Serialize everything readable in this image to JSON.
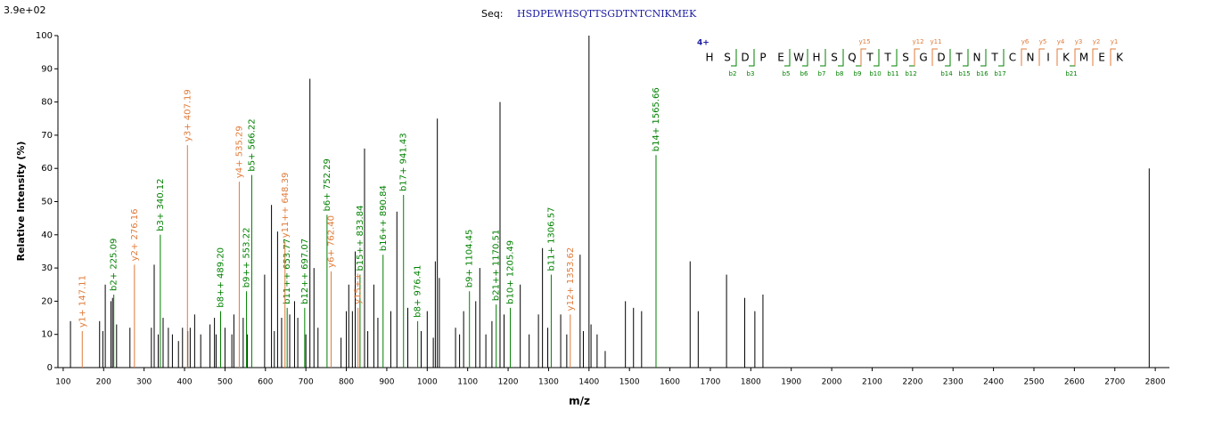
{
  "chart_data": {
    "type": "spectrum",
    "scale_label": "3.9e+02",
    "title": "Seq:",
    "sequence": "HSDPEWHSQTTSGDTNTCNIKMEK",
    "charge": "4+",
    "residues": [
      "H",
      "S",
      "D",
      "P",
      "E",
      "W",
      "H",
      "S",
      "Q",
      "T",
      "T",
      "S",
      "G",
      "D",
      "T",
      "N",
      "T",
      "C",
      "N",
      "I",
      "K",
      "M",
      "E",
      "K"
    ],
    "b_markers": [
      "b2",
      "b3",
      "b5",
      "b6",
      "b7",
      "b8",
      "b9",
      "b10",
      "b11",
      "b12",
      "b14",
      "b15",
      "b16",
      "b17",
      "b21"
    ],
    "y_markers": [
      "y15",
      "y12",
      "y11",
      "y6",
      "y5",
      "y4",
      "y3",
      "y2",
      "y1"
    ],
    "x_label": "m/z",
    "y_label": "Relative   Intensity (%)",
    "xlim": [
      87,
      2835
    ],
    "ylim": [
      0,
      100
    ],
    "xticks": [
      100,
      200,
      300,
      400,
      500,
      600,
      700,
      800,
      900,
      1000,
      1100,
      1200,
      1300,
      1400,
      1500,
      1600,
      1700,
      1800,
      1900,
      2000,
      2100,
      2200,
      2300,
      2400,
      2500,
      2600,
      2700,
      2800
    ],
    "yticks": [
      0,
      10,
      20,
      30,
      40,
      50,
      60,
      70,
      80,
      90,
      100
    ],
    "peaks": {
      "color": "#000000",
      "x": [
        87,
        118,
        190,
        198,
        204,
        218,
        222,
        232,
        265,
        318,
        325,
        335,
        347,
        360,
        370,
        385,
        395,
        408,
        414,
        425,
        440,
        463,
        474,
        478,
        500,
        517,
        522,
        545,
        555,
        598,
        615,
        622,
        630,
        640,
        660,
        672,
        680,
        700,
        710,
        720,
        730,
        787,
        800,
        806,
        815,
        822,
        845,
        853,
        868,
        878,
        910,
        925,
        952,
        985,
        1000,
        1015,
        1020,
        1025,
        1030,
        1070,
        1080,
        1090,
        1120,
        1130,
        1145,
        1160,
        1180,
        1190,
        1230,
        1252,
        1275,
        1285,
        1298,
        1330,
        1345,
        1378,
        1386,
        1400,
        1405,
        1420,
        1440,
        1490,
        1510,
        1530,
        1650,
        1670,
        1740,
        1785,
        1810,
        1830,
        2785
      ],
      "values": [
        52,
        14,
        14,
        11,
        25,
        20,
        21,
        13,
        12,
        12,
        31,
        10,
        15,
        12,
        10,
        8,
        12,
        11,
        12,
        16,
        10,
        13,
        15,
        10,
        12,
        10,
        16,
        15,
        10,
        28,
        49,
        11,
        41,
        15,
        16,
        20,
        15,
        10,
        87,
        30,
        12,
        9,
        17,
        25,
        17,
        35,
        66,
        11,
        25,
        15,
        17,
        47,
        18,
        11,
        17,
        9,
        32,
        75,
        27,
        12,
        10,
        17,
        20,
        30,
        10,
        14,
        80,
        16,
        25,
        10,
        16,
        36,
        12,
        16,
        10,
        34,
        11,
        100,
        13,
        10,
        5,
        20,
        18,
        17,
        32,
        17,
        28,
        21,
        17,
        22,
        60
      ]
    },
    "b_ions": {
      "color": "#008000",
      "x": [
        225.09,
        340.12,
        489.2,
        553.22,
        566.22,
        653.77,
        697.07,
        752.29,
        833.84,
        890.84,
        941.43,
        976.41,
        1104.45,
        1170.51,
        1205.49,
        1306.57,
        1565.66
      ],
      "values": [
        22,
        40,
        17,
        23,
        58,
        18,
        18,
        46,
        28,
        34,
        52,
        14,
        23,
        19,
        18,
        28,
        64
      ],
      "labels": [
        "b2+ 225.09",
        "b3+ 340.12",
        "b8++ 489.20",
        "b9++ 553.22",
        "b5+ 566.22",
        "b11++ 653.77",
        "b12++ 697.07",
        "b6+ 752.29",
        "b15++ 833.84",
        "b16++ 890.84",
        "b17+ 941.43",
        "b8+ 976.41",
        "b9+ 1104.45",
        "b21++ 1170.51",
        "b10+ 1205.49",
        "b11+ 1306.57",
        "b14+ 1565.66"
      ]
    },
    "y_ions": {
      "color": "#e07b39",
      "x": [
        147.11,
        276.16,
        407.19,
        535.29,
        648.39,
        762.4,
        829,
        1353.62
      ],
      "values": [
        11,
        31,
        67,
        56,
        38,
        29,
        18,
        16
      ],
      "labels": [
        "y1+ 147.11",
        "y2+ 276.16",
        "y3+ 407.19",
        "y4+ 535.29",
        "y11++ 648.39",
        "y6+ 762.40",
        "y15++",
        "y12+ 1353.62"
      ]
    }
  }
}
